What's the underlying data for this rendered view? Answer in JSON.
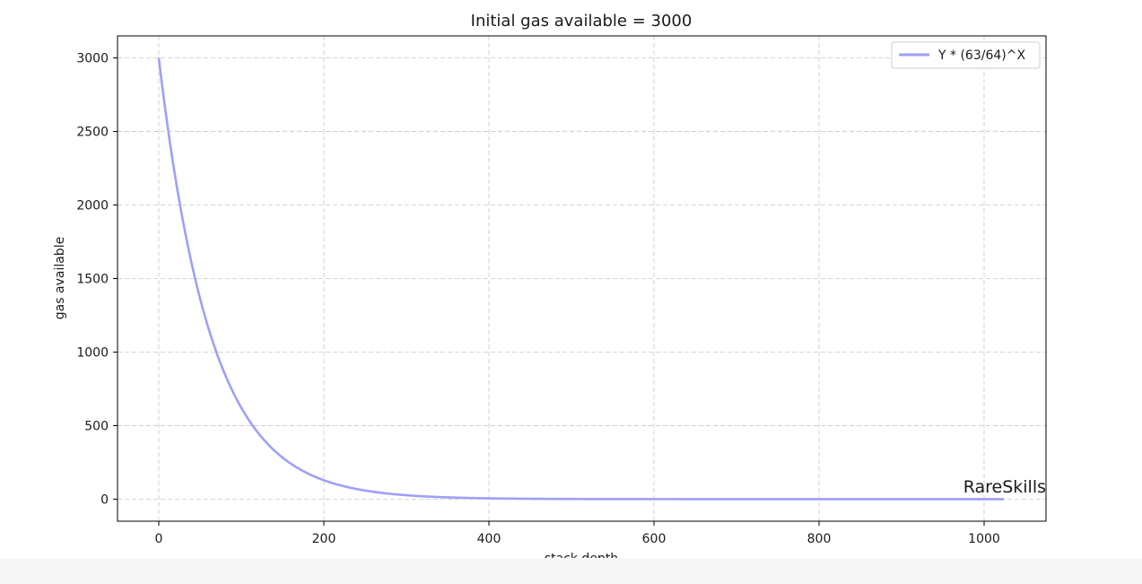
{
  "chart_data": {
    "type": "line",
    "title": "Initial gas available = 3000",
    "xlabel": "stack depth",
    "ylabel": "gas available",
    "xlim": [
      -50,
      1075
    ],
    "ylim": [
      -150,
      3150
    ],
    "xticks": [
      0,
      200,
      400,
      600,
      800,
      1000
    ],
    "yticks": [
      0,
      500,
      1000,
      1500,
      2000,
      2500,
      3000
    ],
    "grid": true,
    "legend_position": "top-right",
    "series": [
      {
        "name": "Y * (63/64)^X",
        "color": "#9f9ff7",
        "initial_value": 3000,
        "ratio": "63/64",
        "x_start": 0,
        "x_end": 1024,
        "x": [
          0,
          25,
          50,
          75,
          100,
          125,
          150,
          175,
          200,
          250,
          300,
          350,
          400,
          500,
          600,
          700,
          800,
          900,
          1024
        ],
        "y": [
          3000,
          2034,
          1379,
          935,
          634,
          430,
          292,
          198,
          134,
          62,
          28,
          13,
          6,
          1.3,
          0.3,
          0.05,
          0.01,
          0,
          0
        ]
      }
    ],
    "watermark": "RareSkills",
    "watermark_color": "#a64ca6"
  }
}
